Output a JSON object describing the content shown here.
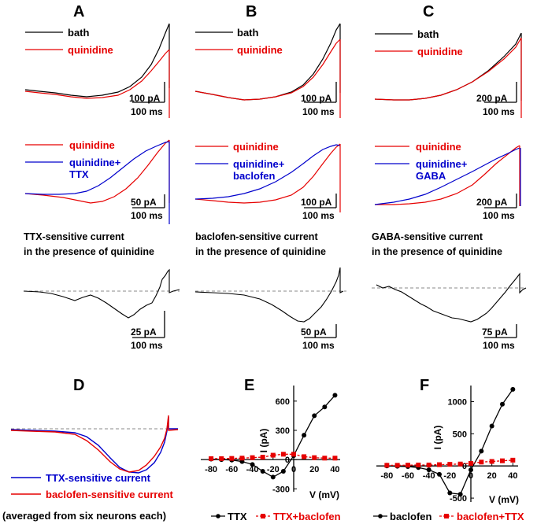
{
  "panel_labels": [
    "A",
    "B",
    "C",
    "D",
    "E",
    "F"
  ],
  "colors": {
    "bath": "#000000",
    "quinidine": "#e60000",
    "blue": "#0000cc",
    "black": "#000000",
    "red": "#e60000",
    "dash": "#888888"
  },
  "legends": {
    "A1": {
      "l1": "bath",
      "l2": "quinidine"
    },
    "B1": {
      "l1": "bath",
      "l2": "quinidine"
    },
    "C1": {
      "l1": "bath",
      "l2": "quinidine"
    },
    "A2": {
      "l1": "quinidine",
      "l2a": "quinidine+",
      "l2b": "TTX"
    },
    "B2": {
      "l1": "quinidine",
      "l2a": "quinidine+",
      "l2b": "baclofen"
    },
    "C2": {
      "l1": "quinidine",
      "l2a": "quinidine+",
      "l2b": "GABA"
    }
  },
  "scalebars": {
    "A1": {
      "y": "100 pA",
      "x": "100 ms"
    },
    "B1": {
      "y": "100 pA",
      "x": "100 ms"
    },
    "C1": {
      "y": "200 pA",
      "x": "100 ms"
    },
    "A2": {
      "y": "50 pA",
      "x": "100 ms"
    },
    "B2": {
      "y": "100 pA",
      "x": "100 ms"
    },
    "C2": {
      "y": "200 pA",
      "x": "100 ms"
    },
    "A3": {
      "y": "25 pA",
      "x": "100 ms"
    },
    "B3": {
      "y": "50 pA",
      "x": "100 ms"
    },
    "C3": {
      "y": "75 pA",
      "x": "100 ms"
    }
  },
  "row3_titles": {
    "A": {
      "l1": "TTX-sensitive current",
      "l2": "in the presence of quinidine"
    },
    "B": {
      "l1": "baclofen-sensitive current",
      "l2": "in the presence of quinidine"
    },
    "C": {
      "l1": "GABA-sensitive current",
      "l2": "in the presence of quinidine"
    }
  },
  "panelD": {
    "legend1": "TTX-sensitive current",
    "legend2": "baclofen-sensitive current",
    "footnote": "(averaged from six neurons each)"
  },
  "chart_data": [
    {
      "panel": "E",
      "type": "line",
      "xlabel": "V (mV)",
      "ylabel": "I (pA)",
      "xticks": [
        -80,
        -60,
        -40,
        -20,
        0,
        20,
        40
      ],
      "yticks": [
        -300,
        0,
        300,
        600
      ],
      "xlim": [
        -90,
        45
      ],
      "ylim": [
        -330,
        760
      ],
      "series": [
        {
          "name": "TTX",
          "color": "#000000",
          "marker": "circle",
          "x": [
            -80,
            -70,
            -60,
            -50,
            -40,
            -30,
            -20,
            -10,
            0,
            10,
            20,
            30,
            40
          ],
          "y": [
            5,
            0,
            -5,
            -20,
            -50,
            -120,
            -180,
            -120,
            40,
            250,
            450,
            540,
            660
          ]
        },
        {
          "name": "TTX+baclofen",
          "color": "#e60000",
          "marker": "square",
          "x": [
            -80,
            -70,
            -60,
            -50,
            -40,
            -30,
            -20,
            -10,
            0,
            10,
            20,
            30,
            40
          ],
          "y": [
            10,
            10,
            12,
            15,
            20,
            25,
            45,
            55,
            55,
            30,
            20,
            15,
            15
          ]
        }
      ]
    },
    {
      "panel": "F",
      "type": "line",
      "xlabel": "V (mV)",
      "ylabel": "I (pA)",
      "xticks": [
        -80,
        -60,
        -40,
        -20,
        0,
        20,
        40
      ],
      "yticks": [
        -500,
        0,
        500,
        1000
      ],
      "xlim": [
        -90,
        45
      ],
      "ylim": [
        -560,
        1250
      ],
      "series": [
        {
          "name": "baclofen",
          "color": "#000000",
          "marker": "circle",
          "x": [
            -80,
            -70,
            -60,
            -50,
            -40,
            -30,
            -20,
            -10,
            0,
            10,
            20,
            30,
            40
          ],
          "y": [
            0,
            -5,
            -10,
            -25,
            -60,
            -130,
            -420,
            -440,
            -60,
            230,
            620,
            960,
            1190
          ]
        },
        {
          "name": "baclofen+TTX",
          "color": "#e60000",
          "marker": "square",
          "x": [
            -80,
            -70,
            -60,
            -50,
            -40,
            -30,
            -20,
            -10,
            0,
            10,
            20,
            30,
            40
          ],
          "y": [
            10,
            10,
            12,
            15,
            15,
            20,
            25,
            30,
            40,
            60,
            70,
            80,
            90
          ]
        }
      ]
    }
  ]
}
